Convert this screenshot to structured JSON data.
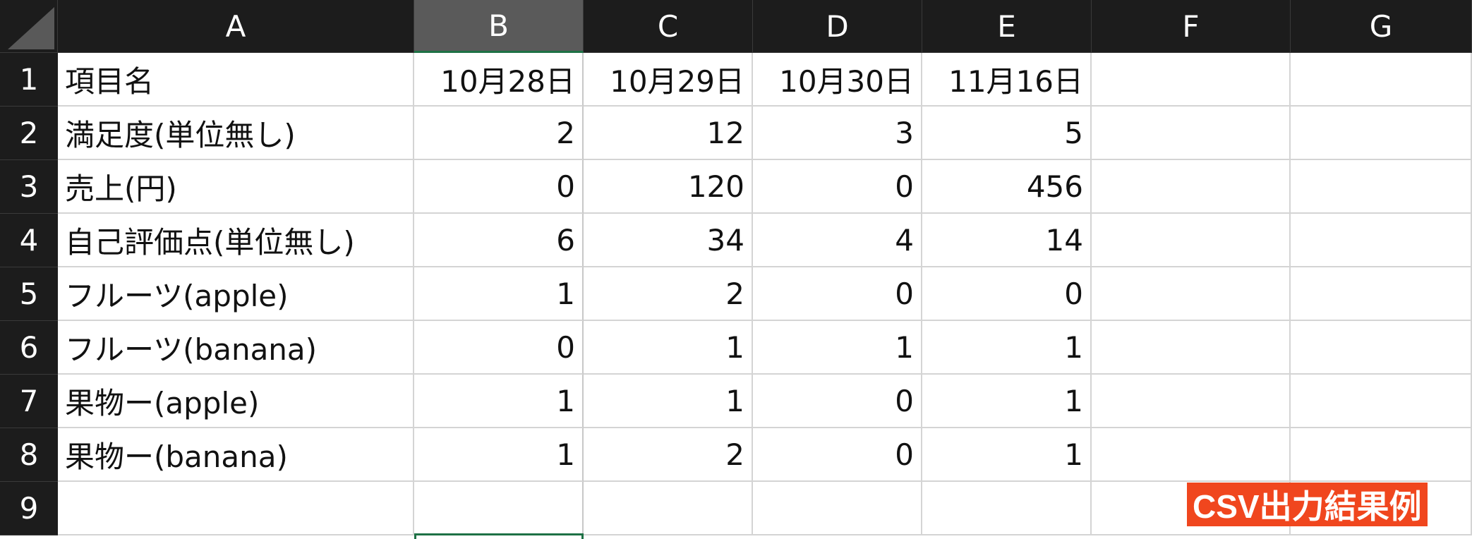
{
  "columns": [
    "A",
    "B",
    "C",
    "D",
    "E",
    "F",
    "G"
  ],
  "rows": [
    {
      "num": "1",
      "cells": [
        "項目名",
        "10月28日",
        "10月29日",
        "10月30日",
        "11月16日",
        "",
        ""
      ]
    },
    {
      "num": "2",
      "cells": [
        "満足度(単位無し)",
        "2",
        "12",
        "3",
        "5",
        "",
        ""
      ]
    },
    {
      "num": "3",
      "cells": [
        "売上(円)",
        "0",
        "120",
        "0",
        "456",
        "",
        ""
      ]
    },
    {
      "num": "4",
      "cells": [
        "自己評価点(単位無し)",
        "6",
        "34",
        "4",
        "14",
        "",
        ""
      ]
    },
    {
      "num": "5",
      "cells": [
        "フルーツ(apple)",
        "1",
        "2",
        "0",
        "0",
        "",
        ""
      ]
    },
    {
      "num": "6",
      "cells": [
        "フルーツ(banana)",
        "0",
        "1",
        "1",
        "1",
        "",
        ""
      ]
    },
    {
      "num": "7",
      "cells": [
        "果物ー(apple)",
        "1",
        "1",
        "0",
        "1",
        "",
        ""
      ]
    },
    {
      "num": "8",
      "cells": [
        "果物ー(banana)",
        "1",
        "2",
        "0",
        "1",
        "",
        ""
      ]
    },
    {
      "num": "9",
      "cells": [
        "",
        "",
        "",
        "",
        "",
        "",
        ""
      ]
    }
  ],
  "selected_column": "B",
  "badge": {
    "label": "CSV出力結果例"
  },
  "colors": {
    "header_bg": "#1c1c1c",
    "selected_header_bg": "#5a5a5a",
    "selection": "#1e7145",
    "badge_bg": "#f0461e"
  }
}
